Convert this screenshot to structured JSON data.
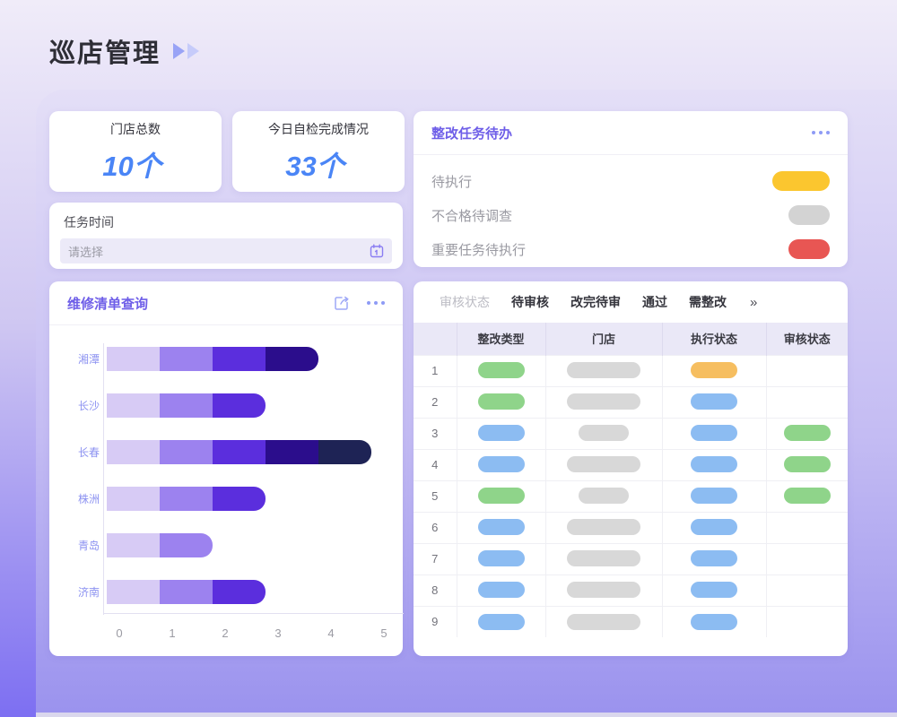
{
  "page": {
    "title": "巡店管理"
  },
  "stats": [
    {
      "label": "门店总数",
      "value": "10个"
    },
    {
      "label": "今日自检完成情况",
      "value": "33个"
    }
  ],
  "task_time": {
    "label": "任务时间",
    "placeholder": "请选择",
    "icon": "calendar-icon"
  },
  "todo": {
    "title": "整改任务待办",
    "menu_icon": "ellipsis-icon",
    "items": [
      {
        "label": "待执行",
        "color": "#FBC62F",
        "pill_width": 64
      },
      {
        "label": "不合格待调查",
        "color": "#D3D3D3",
        "pill_width": 46
      },
      {
        "label": "重要任务待执行",
        "color": "#E85653",
        "pill_width": 46
      }
    ]
  },
  "repair": {
    "title": "维修清单查询",
    "icons": [
      "share-icon",
      "ellipsis-icon"
    ]
  },
  "chart_data": {
    "type": "bar",
    "orientation": "horizontal",
    "stacked": true,
    "categories": [
      "湘潭",
      "长沙",
      "长春",
      "株洲",
      "青岛",
      "济南"
    ],
    "series_totals": [
      4,
      3,
      5,
      3,
      2,
      3
    ],
    "segments": [
      [
        1,
        1,
        1,
        1
      ],
      [
        1,
        1,
        1
      ],
      [
        1,
        1,
        1,
        1,
        1
      ],
      [
        1,
        1,
        1
      ],
      [
        1,
        1
      ],
      [
        1,
        1,
        1
      ]
    ],
    "palette": [
      "#D7CBF5",
      "#9C82EF",
      "#5B2EDD",
      "#2B0D8C",
      "#1E2355"
    ],
    "xticks": [
      0,
      1,
      2,
      3,
      4,
      5
    ],
    "xlim": [
      0,
      5
    ],
    "grid": false,
    "legend": false
  },
  "table": {
    "filter": {
      "label": "审核状态",
      "options": [
        "待审核",
        "改完待审",
        "通过",
        "需整改"
      ],
      "more": "»"
    },
    "columns": [
      "",
      "整改类型",
      "门店",
      "执行状态",
      "审核状态"
    ],
    "pill_colors": {
      "green": "#8FD48A",
      "blue": "#8CBCF2",
      "orange": "#F6BE60",
      "gray": "#D8D8D8"
    },
    "rows": [
      {
        "num": "1",
        "type": "green",
        "store": "gray-wide",
        "exec": "orange",
        "audit": ""
      },
      {
        "num": "2",
        "type": "green",
        "store": "gray-wide",
        "exec": "blue",
        "audit": ""
      },
      {
        "num": "3",
        "type": "blue",
        "store": "gray-short",
        "exec": "blue",
        "audit": "green"
      },
      {
        "num": "4",
        "type": "blue",
        "store": "gray-wide",
        "exec": "blue",
        "audit": "green"
      },
      {
        "num": "5",
        "type": "green",
        "store": "gray-short",
        "exec": "blue",
        "audit": "green"
      },
      {
        "num": "6",
        "type": "blue",
        "store": "gray-wide",
        "exec": "blue",
        "audit": ""
      },
      {
        "num": "7",
        "type": "blue",
        "store": "gray-wide",
        "exec": "blue",
        "audit": ""
      },
      {
        "num": "8",
        "type": "blue",
        "store": "gray-wide",
        "exec": "blue",
        "audit": ""
      },
      {
        "num": "9",
        "type": "blue",
        "store": "gray-wide",
        "exec": "blue",
        "audit": ""
      }
    ]
  }
}
